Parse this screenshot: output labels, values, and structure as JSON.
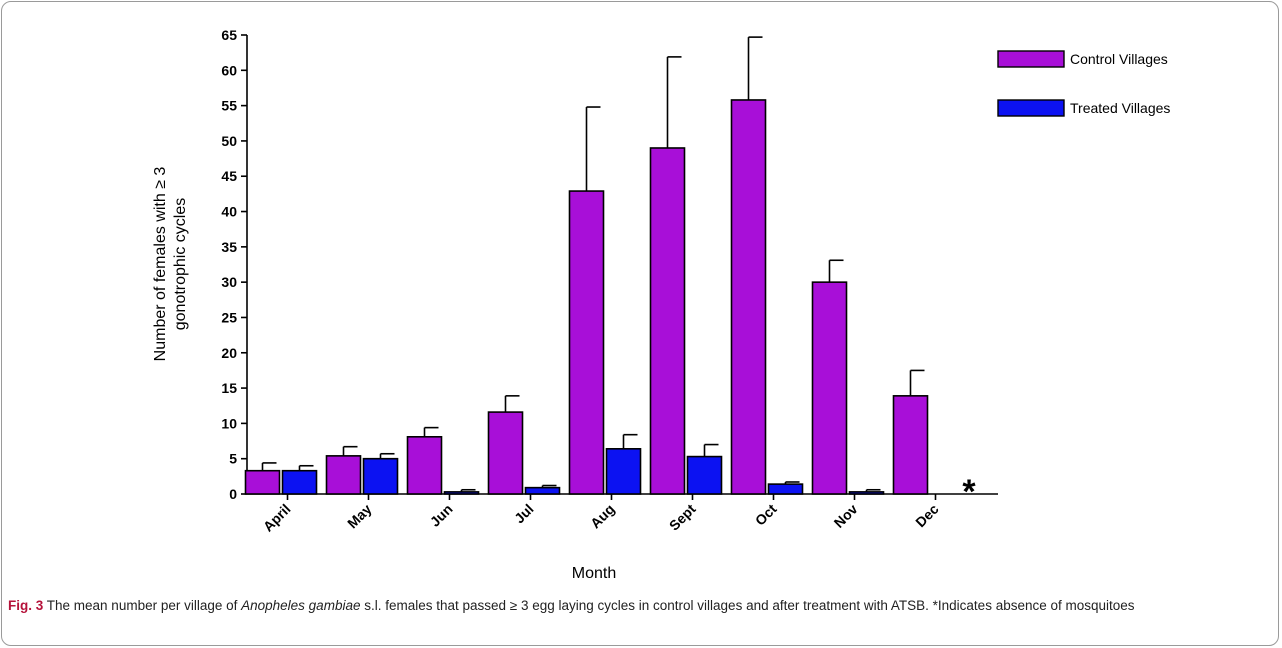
{
  "chart_data": {
    "type": "bar",
    "ylabel_line1": "Number of females with ≥ 3",
    "ylabel_line2": "gonotrophic cycles",
    "xlabel": "Month",
    "ylim": [
      0,
      65
    ],
    "yticks": [
      0,
      5,
      10,
      15,
      20,
      25,
      30,
      35,
      40,
      45,
      50,
      55,
      60,
      65
    ],
    "categories": [
      "April",
      "May",
      "Jun",
      "Jul",
      "Aug",
      "Sept",
      "Oct",
      "Nov",
      "Dec"
    ],
    "series": [
      {
        "name": "Control Villages",
        "color": "#a80fd8",
        "values": [
          3.3,
          5.4,
          8.1,
          11.6,
          42.9,
          49.0,
          55.8,
          30.0,
          13.9
        ],
        "errors": [
          1.1,
          1.3,
          1.3,
          2.3,
          11.9,
          12.9,
          8.9,
          3.1,
          3.6
        ]
      },
      {
        "name": "Treated Villages",
        "color": "#0c12f2",
        "values": [
          3.3,
          5.0,
          0.3,
          0.9,
          6.4,
          5.3,
          1.4,
          0.3,
          null
        ],
        "errors": [
          0.7,
          0.7,
          0.3,
          0.3,
          2.0,
          1.7,
          0.3,
          0.3,
          null
        ]
      }
    ],
    "legend_position": "top-right",
    "grid": false,
    "annotation": "*"
  },
  "caption": {
    "fig_label": "Fig. 3",
    "text_before": "  The mean number per village of ",
    "species": "Anopheles gambiae",
    "text_after": " s.l. females that passed ≥ 3 egg laying cycles in control villages and after treatment with ATSB. *Indicates absence of mosquitoes"
  }
}
